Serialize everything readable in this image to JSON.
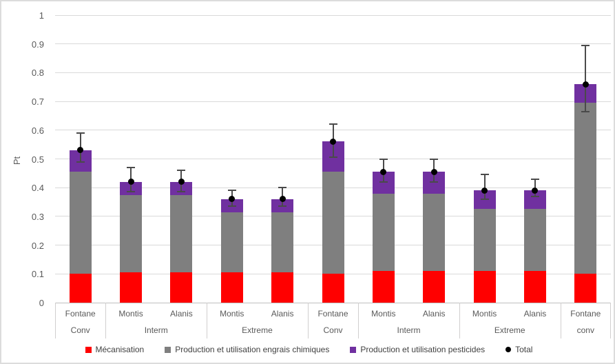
{
  "chart_data": {
    "type": "bar",
    "stacked": true,
    "title": "",
    "xlabel": "",
    "ylabel": "Pt",
    "ylim": [
      0,
      1
    ],
    "ytick_labels": [
      "0",
      "0.1",
      "0.2",
      "0.3",
      "0.4",
      "0.5",
      "0.6",
      "0.7",
      "0.8",
      "0.9",
      "1"
    ],
    "grid": true,
    "legend_position": "bottom",
    "series_names": [
      "Mécanisation",
      "Production et utilisation engrais chimiques",
      "Production et utilisation pesticides"
    ],
    "total_series_name": "Total",
    "groups": [
      {
        "label": "Conv",
        "bars": [
          {
            "name": "Fontane",
            "segments": [
              0.1,
              0.355,
              0.075
            ],
            "total": 0.53,
            "err_low": 0.49,
            "err_high": 0.59
          }
        ]
      },
      {
        "label": "Interm",
        "bars": [
          {
            "name": "Montis",
            "segments": [
              0.105,
              0.27,
              0.045
            ],
            "total": 0.42,
            "err_low": 0.385,
            "err_high": 0.47
          },
          {
            "name": "Alanis",
            "segments": [
              0.105,
              0.27,
              0.045
            ],
            "total": 0.42,
            "err_low": 0.385,
            "err_high": 0.46
          }
        ]
      },
      {
        "label": "Extreme",
        "bars": [
          {
            "name": "Montis",
            "segments": [
              0.105,
              0.21,
              0.045
            ],
            "total": 0.36,
            "err_low": 0.335,
            "err_high": 0.39
          },
          {
            "name": "Alanis",
            "segments": [
              0.105,
              0.21,
              0.045
            ],
            "total": 0.36,
            "err_low": 0.335,
            "err_high": 0.4
          }
        ]
      },
      {
        "label": "Conv",
        "bars": [
          {
            "name": "Fontane",
            "segments": [
              0.1,
              0.355,
              0.105
            ],
            "total": 0.56,
            "err_low": 0.505,
            "err_high": 0.62
          }
        ]
      },
      {
        "label": "Interm",
        "bars": [
          {
            "name": "Montis",
            "segments": [
              0.11,
              0.27,
              0.075
            ],
            "total": 0.455,
            "err_low": 0.42,
            "err_high": 0.5
          },
          {
            "name": "Alanis",
            "segments": [
              0.11,
              0.27,
              0.075
            ],
            "total": 0.455,
            "err_low": 0.42,
            "err_high": 0.5
          }
        ]
      },
      {
        "label": "Extreme",
        "bars": [
          {
            "name": "Montis",
            "segments": [
              0.11,
              0.215,
              0.065
            ],
            "total": 0.39,
            "err_low": 0.36,
            "err_high": 0.445
          },
          {
            "name": "Alanis",
            "segments": [
              0.11,
              0.215,
              0.065
            ],
            "total": 0.39,
            "err_low": 0.37,
            "err_high": 0.43
          }
        ]
      },
      {
        "label": "conv",
        "bars": [
          {
            "name": "Fontane",
            "segments": [
              0.1,
              0.595,
              0.065
            ],
            "total": 0.76,
            "err_low": 0.665,
            "err_high": 0.895
          }
        ]
      }
    ],
    "legend": [
      {
        "label": "Mécanisation",
        "marker": "square",
        "color": "#FF0000"
      },
      {
        "label": "Production et utilisation engrais chimiques",
        "marker": "square",
        "color": "#7F7F7F"
      },
      {
        "label": "Production et utilisation pesticides",
        "marker": "square",
        "color": "#7030A0"
      },
      {
        "label": "Total",
        "marker": "circle",
        "color": "#000000"
      }
    ]
  }
}
